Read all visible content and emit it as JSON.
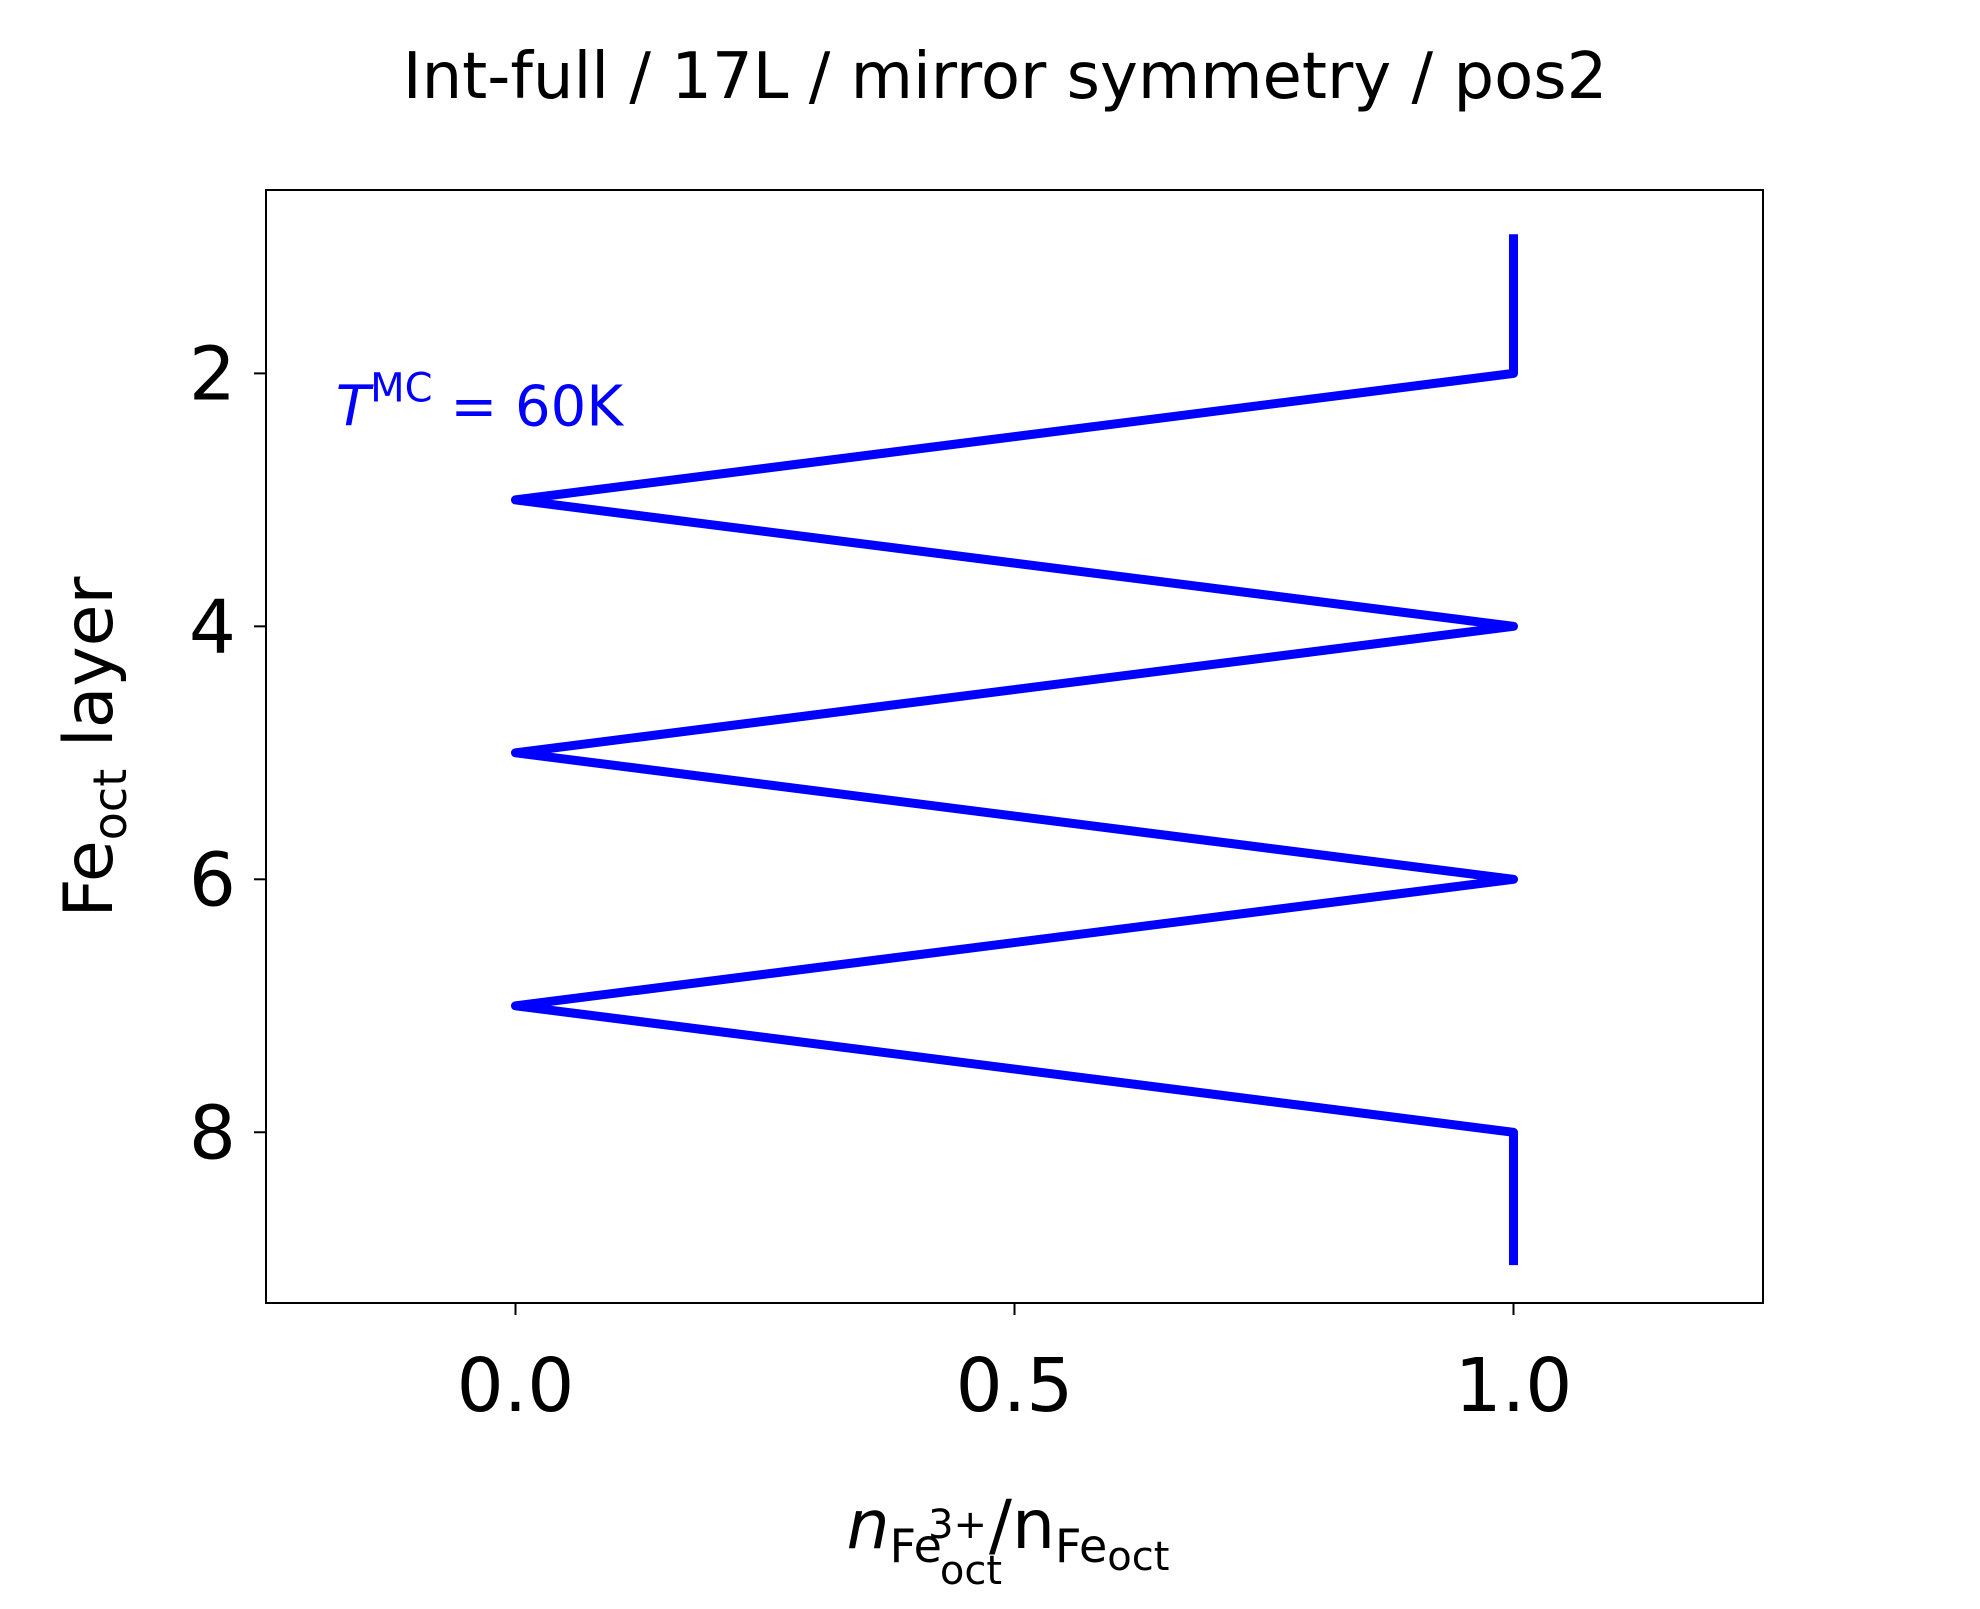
{
  "chart_data": {
    "type": "line",
    "title": "Int-full / 17L / mirror symmetry / pos2",
    "xlabel": {
      "main": "n",
      "sub1": "Fe",
      "sub1_sub": "oct",
      "sub1_sup": "3+",
      "slash": "/n",
      "sub2": "Fe",
      "sub2_sub": "oct"
    },
    "ylabel": {
      "main": "Fe",
      "sub": "oct",
      "rest": " layer"
    },
    "xlim": [
      -0.25,
      1.25
    ],
    "ylim": [
      9.35,
      0.55
    ],
    "y_inverted": true,
    "xticks": [
      0.0,
      0.5,
      1.0
    ],
    "xtick_labels": [
      "0.0",
      "0.5",
      "1.0"
    ],
    "yticks": [
      2,
      4,
      6,
      8
    ],
    "ytick_labels": [
      "2",
      "4",
      "6",
      "8"
    ],
    "grid": false,
    "annotation": {
      "italic": "T",
      "sup": "MC",
      "rest": " = 60K",
      "x": -0.18,
      "y": 2.3
    },
    "series": [
      {
        "color": "#0000ff",
        "x": [
          1,
          1,
          0,
          1,
          0,
          1,
          0,
          1,
          1
        ],
        "y": [
          0.9,
          2,
          3,
          4,
          5,
          6,
          7,
          8,
          9.05
        ]
      }
    ]
  }
}
